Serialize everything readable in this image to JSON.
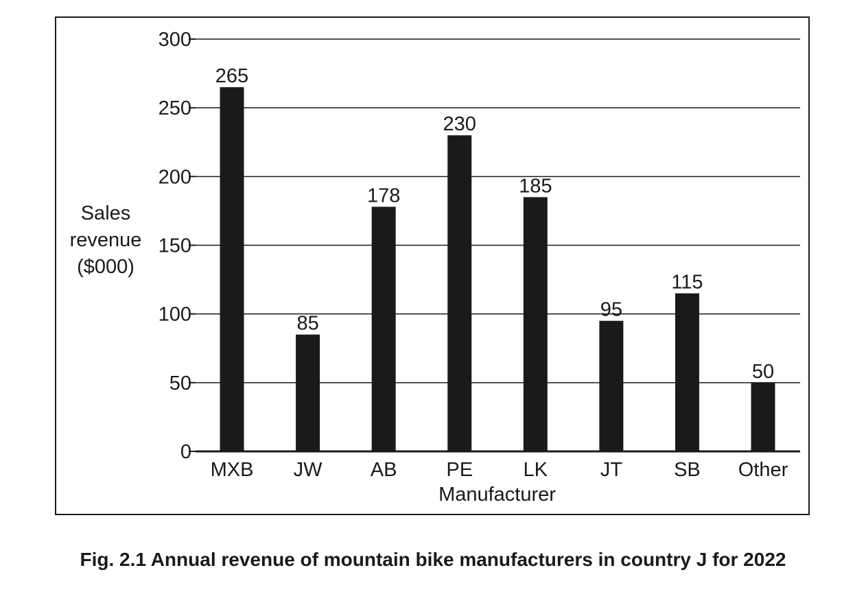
{
  "caption": "Fig. 2.1 Annual revenue of mountain bike manufacturers in country J for 2022",
  "chart_data": {
    "type": "bar",
    "title": "",
    "xlabel": "Manufacturer",
    "ylabel": "Sales\nrevenue\n($000)",
    "ylim": [
      0,
      300
    ],
    "yticks": [
      "0",
      "50",
      "100",
      "150",
      "200",
      "250",
      "300"
    ],
    "grid": true,
    "categories": [
      "MXB",
      "JW",
      "AB",
      "PE",
      "LK",
      "JT",
      "SB",
      "Other"
    ],
    "values": [
      265,
      85,
      178,
      230,
      185,
      95,
      115,
      50
    ],
    "data_labels": [
      "265",
      "85",
      "178",
      "230",
      "185",
      "95",
      "115",
      "50"
    ],
    "bar_color": "#1a1a1a"
  }
}
